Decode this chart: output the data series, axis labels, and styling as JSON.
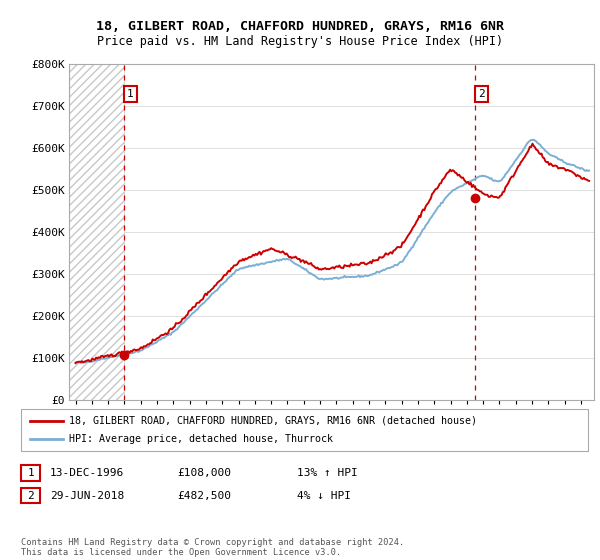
{
  "title": "18, GILBERT ROAD, CHAFFORD HUNDRED, GRAYS, RM16 6NR",
  "subtitle": "Price paid vs. HM Land Registry's House Price Index (HPI)",
  "ylim": [
    0,
    800000
  ],
  "yticks": [
    0,
    100000,
    200000,
    300000,
    400000,
    500000,
    600000,
    700000,
    800000
  ],
  "ytick_labels": [
    "£0",
    "£100K",
    "£200K",
    "£300K",
    "£400K",
    "£500K",
    "£600K",
    "£700K",
    "£800K"
  ],
  "sale1_x": 1996.96,
  "sale1_y": 108000,
  "sale1_label": "1",
  "sale1_date": "13-DEC-1996",
  "sale1_price": "£108,000",
  "sale1_hpi": "13% ↑ HPI",
  "sale2_x": 2018.49,
  "sale2_y": 482500,
  "sale2_label": "2",
  "sale2_date": "29-JUN-2018",
  "sale2_price": "£482,500",
  "sale2_hpi": "4% ↓ HPI",
  "legend_line1": "18, GILBERT ROAD, CHAFFORD HUNDRED, GRAYS, RM16 6NR (detached house)",
  "legend_line2": "HPI: Average price, detached house, Thurrock",
  "footer": "Contains HM Land Registry data © Crown copyright and database right 2024.\nThis data is licensed under the Open Government Licence v3.0.",
  "line_color_red": "#cc0000",
  "line_color_blue": "#7bafd4",
  "grid_color": "#e0e0e0",
  "sale_marker_color": "#cc0000",
  "dashed_line_color": "#cc0000",
  "box_edge_color": "#cc0000",
  "background_color": "#ffffff",
  "xlim_left": 1993.6,
  "xlim_right": 2025.8
}
